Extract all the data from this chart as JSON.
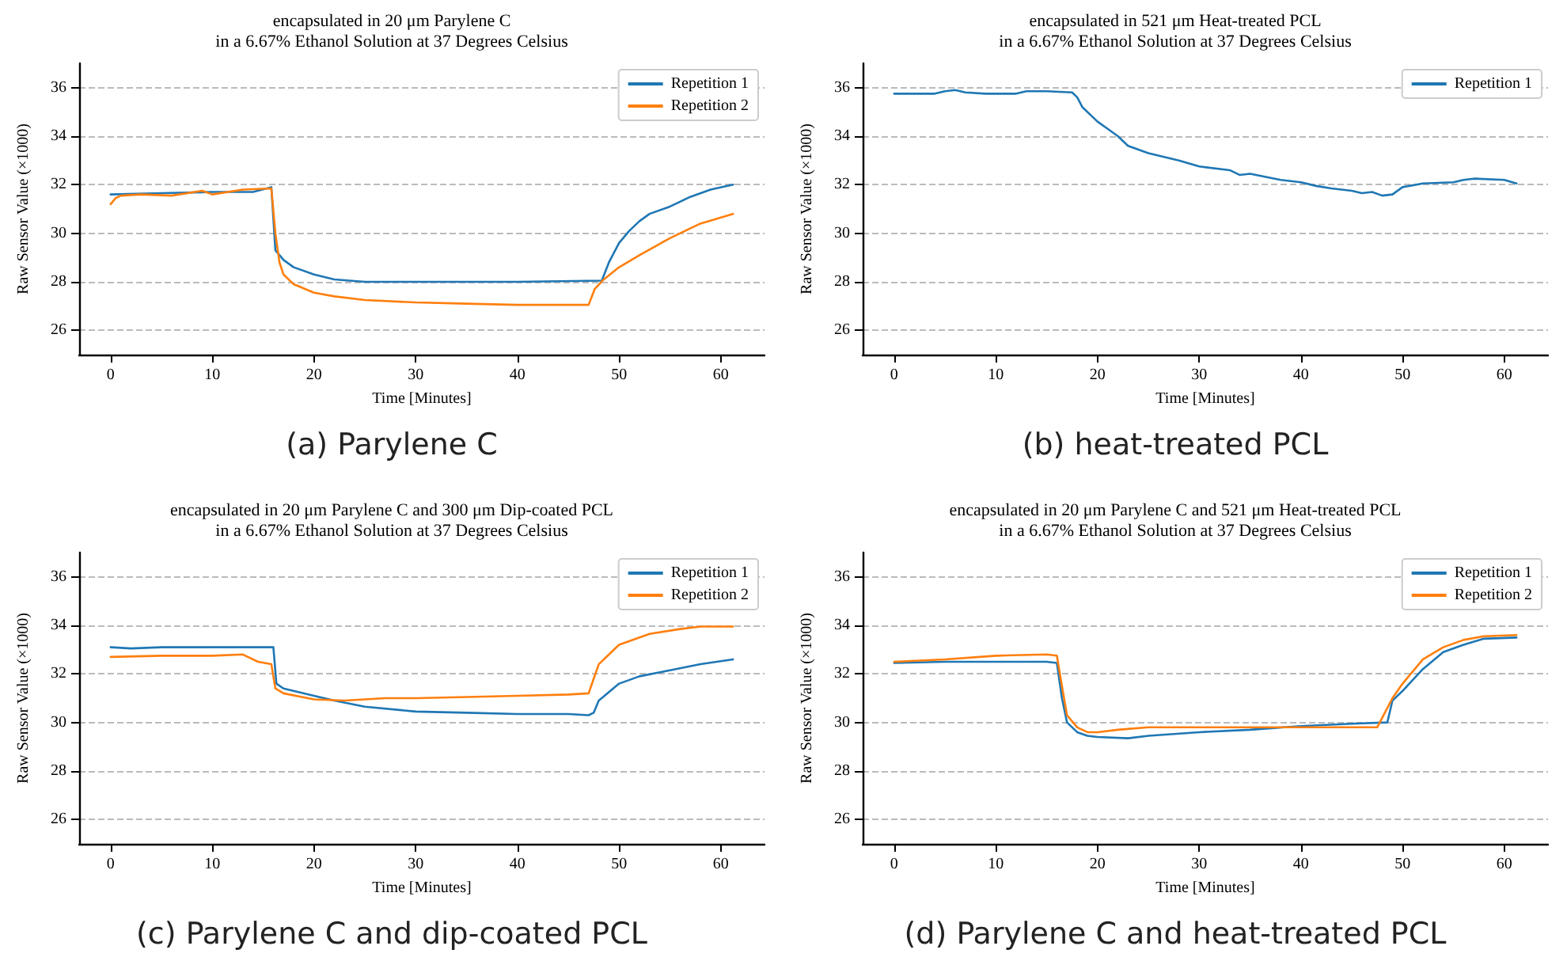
{
  "chart_data": [
    {
      "type": "line",
      "title": "encapsulated in 20 μm Parylene C\nin a 6.67% Ethanol Solution at 37 Degrees Celsius",
      "xlabel": "Time [Minutes]",
      "ylabel": "Raw Sensor Value (×1000)",
      "xlim": [
        -3.1,
        64.3
      ],
      "xticks": [
        0,
        10,
        20,
        30,
        40,
        50,
        60
      ],
      "ylim": [
        25,
        37
      ],
      "yticks": [
        26,
        28,
        30,
        32,
        34,
        36
      ],
      "grid": "y",
      "legend": "top right",
      "marker": "none",
      "line_style": "solid",
      "annotations": [
        "(a) Parylene C"
      ],
      "series": [
        {
          "name": "Repetition 1",
          "color": "#1f77b4",
          "x": [
            0,
            5,
            10,
            14,
            15.8,
            16.2,
            17,
            18,
            20,
            22,
            25,
            30,
            40,
            48.3,
            49,
            50,
            51,
            52,
            53,
            55,
            57,
            59,
            61.2
          ],
          "values": [
            31.6,
            31.65,
            31.7,
            31.7,
            31.9,
            29.3,
            28.9,
            28.6,
            28.3,
            28.1,
            28.0,
            28.0,
            28.0,
            28.05,
            28.8,
            29.6,
            30.1,
            30.5,
            30.8,
            31.1,
            31.5,
            31.8,
            32.0
          ]
        },
        {
          "name": "Repetition 2",
          "color": "#ff7f0e",
          "x": [
            0,
            0.5,
            1,
            3,
            6,
            9,
            10,
            13,
            15.8,
            16.2,
            16.6,
            17,
            18,
            20,
            22,
            25,
            30,
            35,
            40,
            46,
            47,
            47.6,
            48.5,
            50,
            52,
            55,
            58,
            61.2
          ],
          "values": [
            31.2,
            31.45,
            31.55,
            31.6,
            31.55,
            31.75,
            31.6,
            31.8,
            31.85,
            30.0,
            28.8,
            28.3,
            27.9,
            27.55,
            27.4,
            27.25,
            27.15,
            27.1,
            27.05,
            27.05,
            27.05,
            27.7,
            28.1,
            28.6,
            29.1,
            29.8,
            30.4,
            30.8
          ]
        }
      ]
    },
    {
      "type": "line",
      "title": "encapsulated in 521 μm Heat-treated PCL\nin a 6.67% Ethanol Solution at 37 Degrees Celsius",
      "xlabel": "Time [Minutes]",
      "ylabel": "Raw Sensor Value (×1000)",
      "xlim": [
        -3.1,
        64.3
      ],
      "xticks": [
        0,
        10,
        20,
        30,
        40,
        50,
        60
      ],
      "ylim": [
        25,
        37
      ],
      "yticks": [
        26,
        28,
        30,
        32,
        34,
        36
      ],
      "grid": "y",
      "legend": "top right",
      "marker": "none",
      "line_style": "solid",
      "annotations": [
        "(b) heat-treated PCL"
      ],
      "series": [
        {
          "name": "Repetition 1",
          "color": "#1f77b4",
          "x": [
            0,
            4,
            5,
            6,
            7,
            9,
            12,
            13,
            15,
            17.5,
            18,
            18.5,
            20,
            21,
            22,
            23,
            25,
            28,
            30,
            33,
            34,
            35,
            38,
            40,
            41.5,
            43,
            45,
            46,
            47,
            48,
            49,
            50,
            52,
            55,
            56,
            57,
            60,
            61.2
          ],
          "values": [
            35.75,
            35.75,
            35.85,
            35.9,
            35.8,
            35.75,
            35.75,
            35.85,
            35.85,
            35.8,
            35.6,
            35.2,
            34.6,
            34.3,
            34.0,
            33.6,
            33.3,
            33.0,
            32.75,
            32.6,
            32.4,
            32.45,
            32.2,
            32.1,
            31.95,
            31.85,
            31.75,
            31.65,
            31.7,
            31.55,
            31.6,
            31.9,
            32.05,
            32.1,
            32.2,
            32.25,
            32.2,
            32.05
          ]
        }
      ]
    },
    {
      "type": "line",
      "title": "encapsulated in 20 μm Parylene C and 300 μm Dip-coated PCL\nin a 6.67% Ethanol Solution at 37 Degrees Celsius",
      "xlabel": "Time [Minutes]",
      "ylabel": "Raw Sensor Value (×1000)",
      "xlim": [
        -3.1,
        64.3
      ],
      "xticks": [
        0,
        10,
        20,
        30,
        40,
        50,
        60
      ],
      "ylim": [
        25,
        37
      ],
      "yticks": [
        26,
        28,
        30,
        32,
        34,
        36
      ],
      "grid": "y",
      "legend": "top right",
      "marker": "none",
      "line_style": "solid",
      "annotations": [
        "(c) Parylene C and dip-coated PCL"
      ],
      "series": [
        {
          "name": "Repetition 1",
          "color": "#1f77b4",
          "x": [
            0,
            2,
            5,
            10,
            14,
            16,
            16.3,
            17,
            20,
            22,
            25,
            30,
            35,
            40,
            45,
            47,
            47.5,
            48,
            50,
            52,
            55,
            58,
            61.2
          ],
          "values": [
            33.1,
            33.05,
            33.1,
            33.1,
            33.1,
            33.1,
            31.6,
            31.4,
            31.1,
            30.9,
            30.65,
            30.45,
            30.4,
            30.35,
            30.35,
            30.3,
            30.4,
            30.9,
            31.6,
            31.9,
            32.15,
            32.4,
            32.6
          ]
        },
        {
          "name": "Repetition 2",
          "color": "#ff7f0e",
          "x": [
            0,
            5,
            10,
            13,
            14.5,
            15.8,
            16.2,
            17,
            20,
            23,
            27,
            30,
            35,
            40,
            45,
            47,
            47.5,
            48,
            50,
            53,
            56,
            58,
            61.2
          ],
          "values": [
            32.7,
            32.75,
            32.75,
            32.8,
            32.5,
            32.4,
            31.4,
            31.2,
            30.95,
            30.9,
            31.0,
            31.0,
            31.05,
            31.1,
            31.15,
            31.2,
            31.8,
            32.4,
            33.2,
            33.65,
            33.85,
            33.95,
            33.95
          ]
        }
      ]
    },
    {
      "type": "line",
      "title": "encapsulated in 20 μm Parylene C and 521 μm Heat-treated PCL\nin a 6.67% Ethanol Solution at 37 Degrees Celsius",
      "xlabel": "Time [Minutes]",
      "ylabel": "Raw Sensor Value (×1000)",
      "xlim": [
        -3.1,
        64.3
      ],
      "xticks": [
        0,
        10,
        20,
        30,
        40,
        50,
        60
      ],
      "ylim": [
        25,
        37
      ],
      "yticks": [
        26,
        28,
        30,
        32,
        34,
        36
      ],
      "grid": "y",
      "legend": "top right",
      "marker": "none",
      "line_style": "solid",
      "annotations": [
        "(d) Parylene C and heat-treated PCL"
      ],
      "series": [
        {
          "name": "Repetition 1",
          "color": "#1f77b4",
          "x": [
            0,
            5,
            10,
            15,
            16,
            16.5,
            17,
            18,
            19,
            20,
            23,
            25,
            30,
            35,
            40,
            45,
            48.5,
            49,
            50,
            52,
            54,
            56,
            58,
            61.2
          ],
          "values": [
            32.45,
            32.5,
            32.5,
            32.5,
            32.45,
            31.0,
            30.0,
            29.6,
            29.45,
            29.4,
            29.35,
            29.45,
            29.6,
            29.7,
            29.85,
            29.95,
            30.0,
            30.9,
            31.3,
            32.2,
            32.9,
            33.2,
            33.45,
            33.5
          ]
        },
        {
          "name": "Repetition 2",
          "color": "#ff7f0e",
          "x": [
            0,
            5,
            10,
            15,
            16,
            16.5,
            17,
            18,
            19,
            20,
            22,
            25,
            30,
            40,
            45,
            47.5,
            48,
            49,
            50,
            52,
            54,
            56,
            58,
            61.2
          ],
          "values": [
            32.5,
            32.6,
            32.75,
            32.8,
            32.75,
            31.5,
            30.3,
            29.8,
            29.6,
            29.6,
            29.7,
            29.8,
            29.8,
            29.8,
            29.8,
            29.8,
            30.2,
            31.0,
            31.6,
            32.6,
            33.1,
            33.4,
            33.55,
            33.6
          ]
        }
      ]
    }
  ]
}
